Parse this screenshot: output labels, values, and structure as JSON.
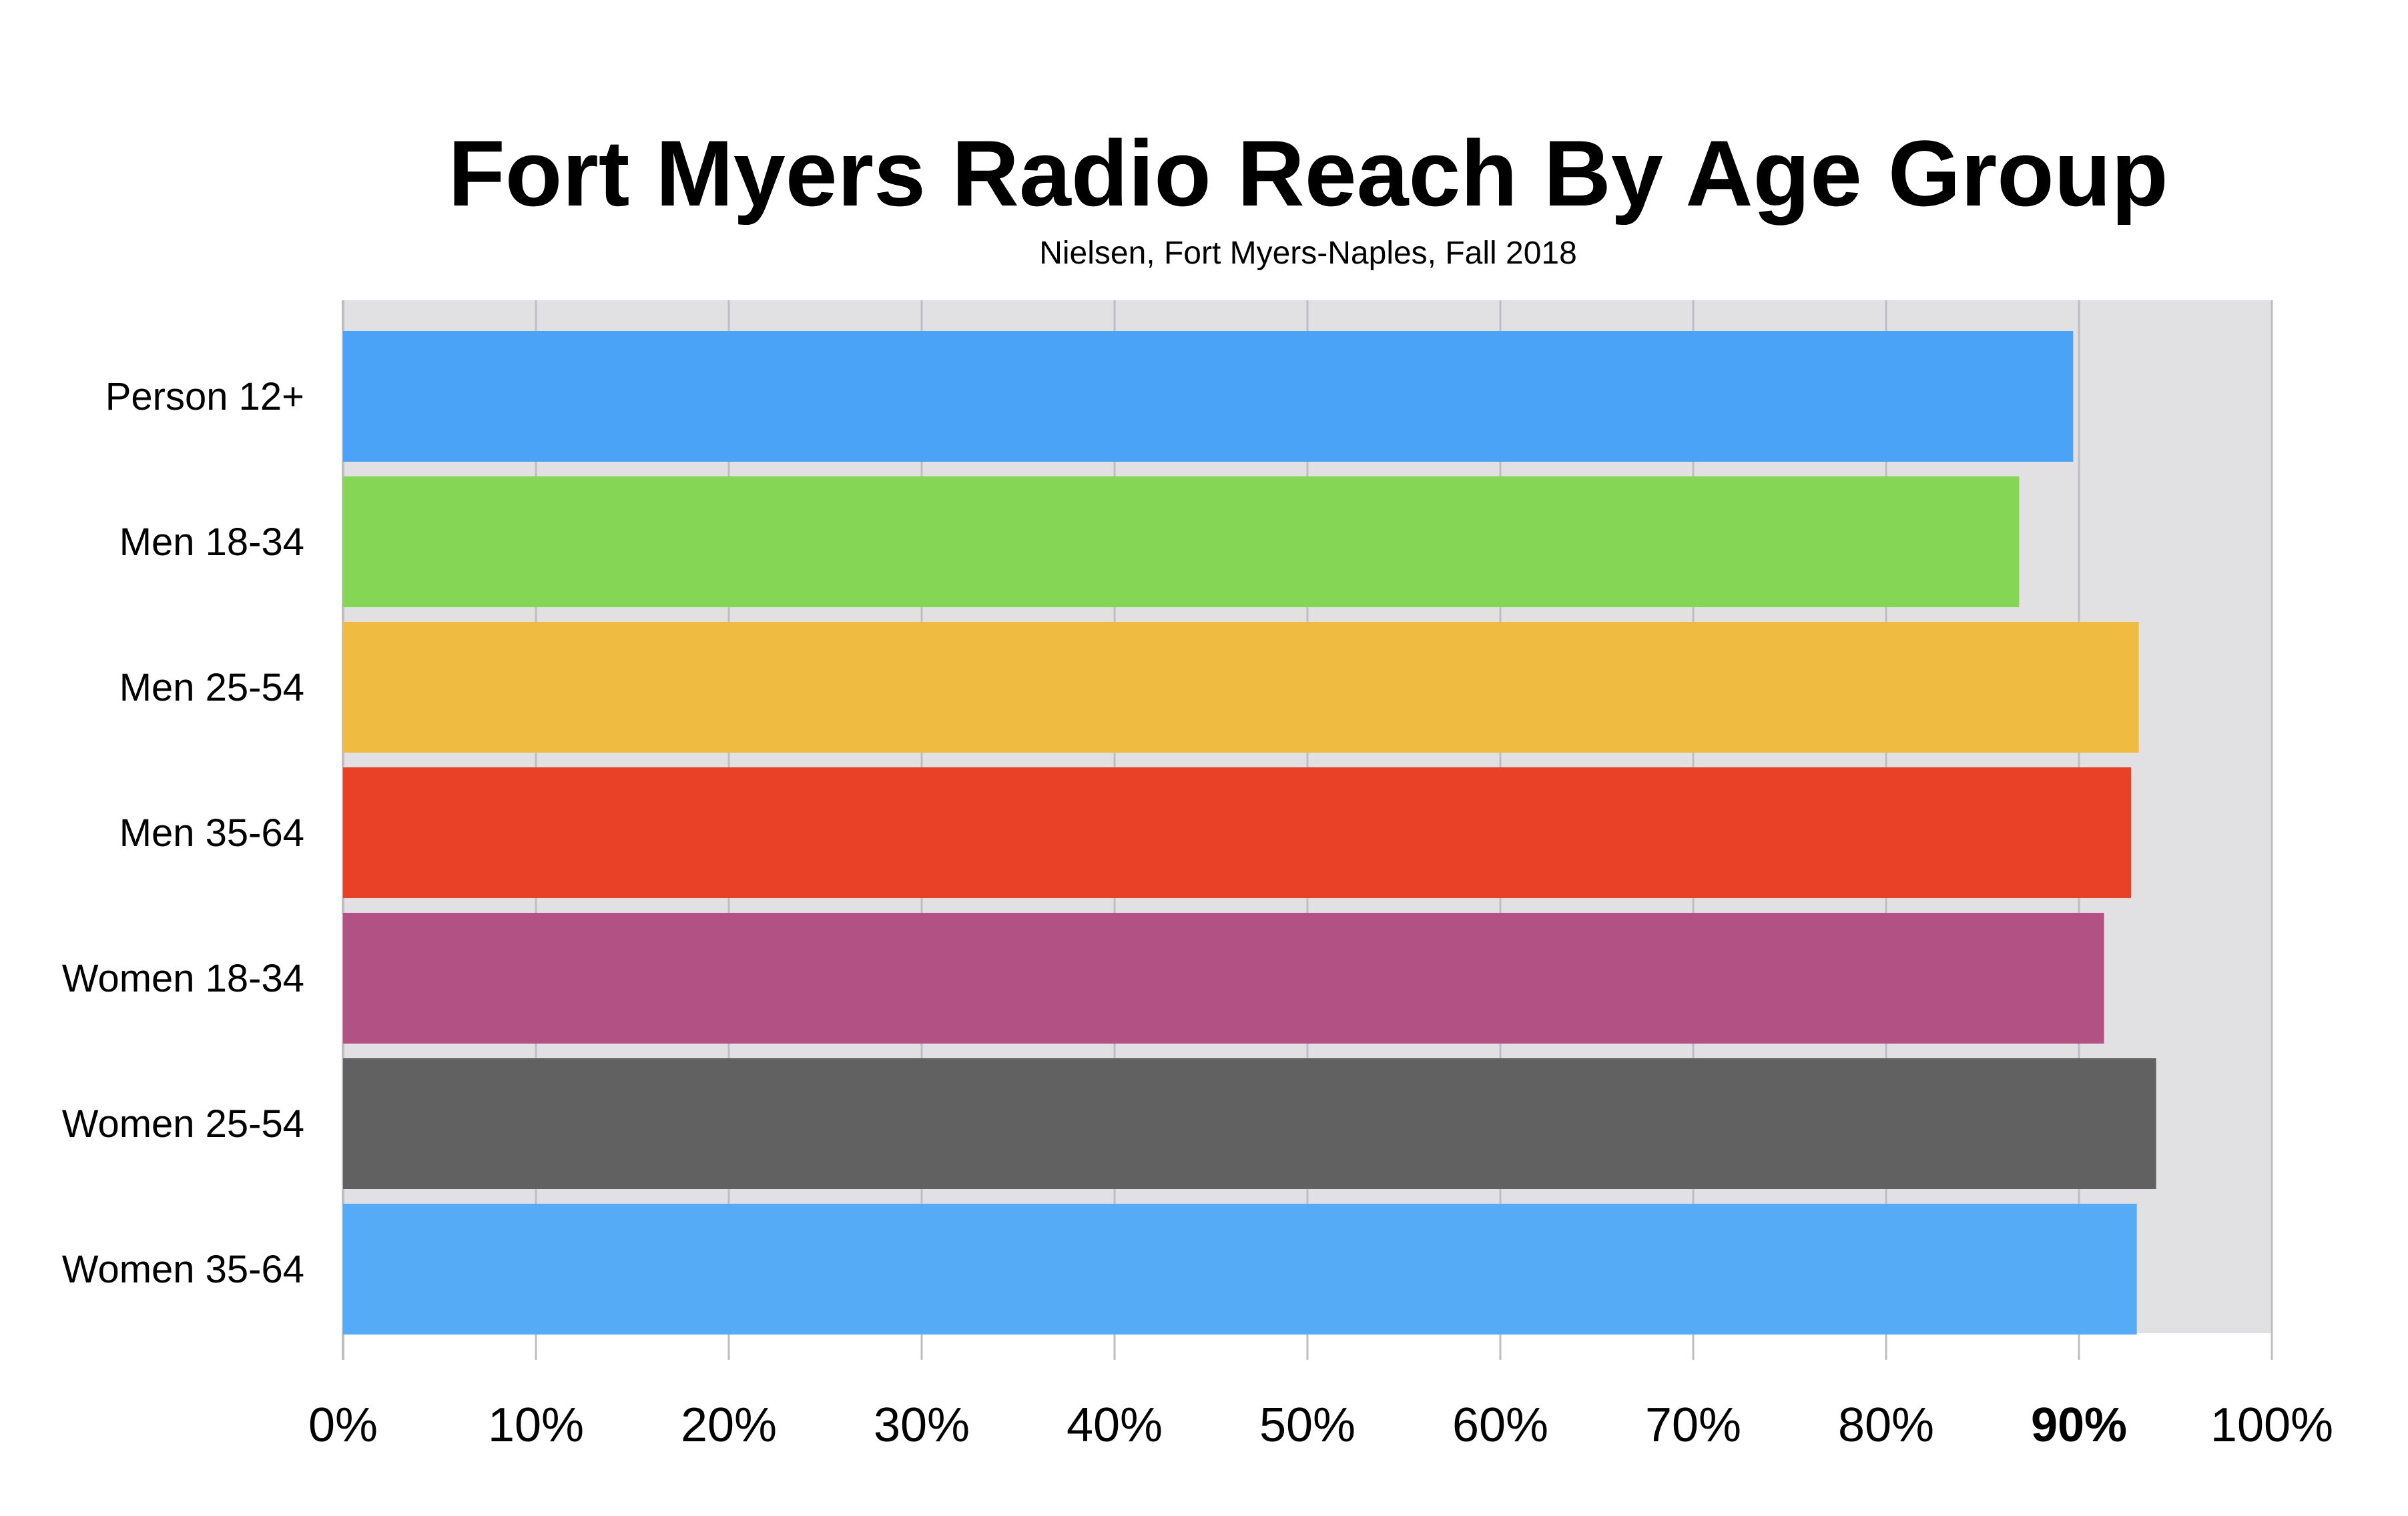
{
  "chart_data": {
    "type": "bar",
    "orientation": "horizontal",
    "title": "Fort Myers Radio Reach By Age Group",
    "subtitle": "Nielsen, Fort Myers-Naples, Fall 2018",
    "categories": [
      "Person 12+",
      "Men 18-34",
      "Men 25-54",
      "Men 35-64",
      "Women 18-34",
      "Women 25-54",
      "Women 35-64"
    ],
    "values": [
      89.7,
      86.9,
      93.1,
      92.7,
      91.3,
      94.0,
      93.0
    ],
    "bar_colors": [
      "#4aa3f7",
      "#84d654",
      "#efbb41",
      "#e94128",
      "#b25183",
      "#616161",
      "#56abf7"
    ],
    "xlim": [
      0,
      100
    ],
    "x_ticks": [
      "0%",
      "10%",
      "20%",
      "30%",
      "40%",
      "50%",
      "60%",
      "70%",
      "80%",
      "90%",
      "100%"
    ],
    "highlight_tick": "90%",
    "highlight_color": "#a3291b",
    "plot_background": "#e1e1e4",
    "grid": true,
    "grid_color": "#bebec2",
    "legend": "none"
  }
}
